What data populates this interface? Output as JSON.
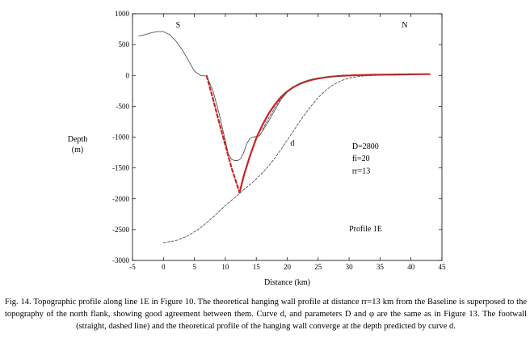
{
  "caption": "Fig. 14. Topographic profile along line 1E in Figure 10. The theoretical hanging wall profile at distance rr=13 km from the Baseline is superposed to the topography of the north flank, showing good agreement between them. Curve d, and parameters D and φ are the same as in Figure 13. The footwall (straight, dashed line) and the theoretical profile of the hanging wall converge at the depth predicted by curve d.",
  "chart_data": {
    "type": "line",
    "xlabel": "Distance (km)",
    "ylabel": [
      "Depth",
      "(m)"
    ],
    "xlim": [
      -5,
      45
    ],
    "ylim": [
      -3000,
      1000
    ],
    "xticks": [
      -5,
      0,
      5,
      10,
      15,
      20,
      25,
      30,
      35,
      40,
      45
    ],
    "yticks": [
      1000,
      500,
      0,
      -500,
      -1000,
      -1500,
      -2000,
      -2500,
      -3000
    ],
    "grid": false,
    "annotations": [
      {
        "text": "S",
        "x": 2,
        "y": 780
      },
      {
        "text": "N",
        "x": 38.5,
        "y": 780
      },
      {
        "text": "d",
        "x": 20.5,
        "y": -1140
      },
      {
        "text": "D=2800",
        "x": 30.5,
        "y": -1190
      },
      {
        "text": "fi=20",
        "x": 30.5,
        "y": -1390
      },
      {
        "text": "rr=13",
        "x": 30.5,
        "y": -1590
      },
      {
        "text": "Profile 1E",
        "x": 30,
        "y": -2530
      }
    ],
    "series": [
      {
        "style": "topography",
        "color": "#555555",
        "dash": "none",
        "x": [
          -4,
          -3,
          -2,
          -1,
          0,
          1,
          2,
          3,
          4,
          5,
          6,
          7,
          8,
          9,
          10,
          10.5,
          11,
          11.5,
          12,
          12.5,
          13,
          13.5,
          14,
          14.5,
          15,
          15.5,
          16,
          17,
          18,
          19,
          20,
          21,
          22,
          23,
          24,
          25,
          26,
          27,
          28,
          29,
          30,
          31,
          32,
          33,
          34,
          35,
          36,
          37,
          38,
          39,
          40,
          41,
          42,
          43
        ],
        "y": [
          640,
          660,
          690,
          710,
          710,
          660,
          560,
          420,
          250,
          70,
          0,
          -10,
          -250,
          -620,
          -1060,
          -1280,
          -1360,
          -1380,
          -1380,
          -1350,
          -1240,
          -1100,
          -1020,
          -1000,
          -990,
          -980,
          -900,
          -740,
          -560,
          -390,
          -270,
          -190,
          -130,
          -90,
          -65,
          -45,
          -30,
          -20,
          -15,
          -10,
          -5,
          0,
          0,
          0,
          5,
          5,
          10,
          10,
          10,
          15,
          15,
          15,
          20,
          20
        ]
      },
      {
        "style": "footwall",
        "color": "#cc2222",
        "dash": "4,3",
        "x": [
          7,
          8,
          9,
          10,
          11,
          12.3
        ],
        "y": [
          -10,
          -380,
          -760,
          -1130,
          -1500,
          -1900
        ]
      },
      {
        "style": "hanging-wall-theoretical",
        "color": "#cc2222",
        "dash": "none",
        "x": [
          12.3,
          13,
          14,
          15,
          16,
          17,
          18,
          19,
          20,
          21,
          22,
          23,
          24,
          25,
          26,
          27,
          28,
          29,
          30,
          31,
          32,
          33,
          34,
          35,
          36,
          37,
          38,
          39,
          40,
          41,
          42,
          43
        ],
        "y": [
          -1900,
          -1620,
          -1300,
          -1020,
          -800,
          -620,
          -470,
          -350,
          -260,
          -190,
          -140,
          -100,
          -72,
          -50,
          -33,
          -20,
          -12,
          -5,
          0,
          3,
          6,
          9,
          11,
          13,
          14,
          15,
          16,
          17,
          18,
          19,
          20,
          20
        ]
      },
      {
        "style": "curve-d",
        "color": "#555555",
        "dash": "3,2",
        "x": [
          0,
          2,
          4,
          6,
          8,
          10,
          12,
          13,
          14,
          15,
          16,
          17,
          18,
          19,
          20,
          21,
          22,
          23,
          24,
          25,
          26,
          27,
          28,
          29,
          30,
          31,
          32,
          33,
          34,
          35,
          36,
          37,
          38,
          39,
          40
        ],
        "y": [
          -2710,
          -2680,
          -2600,
          -2470,
          -2300,
          -2110,
          -1940,
          -1850,
          -1770,
          -1680,
          -1580,
          -1470,
          -1340,
          -1200,
          -1050,
          -900,
          -750,
          -610,
          -480,
          -360,
          -260,
          -180,
          -120,
          -75,
          -45,
          -25,
          -12,
          -5,
          0,
          2,
          4,
          5,
          6,
          7,
          8
        ]
      },
      {
        "style": "hanging-wall-thin-dashed",
        "color": "#555555",
        "dash": "3,2",
        "x": [
          16,
          17,
          18,
          19,
          20,
          21,
          22,
          23,
          24,
          25,
          26,
          27,
          28,
          29,
          30,
          31,
          32
        ],
        "y": [
          -880,
          -690,
          -520,
          -380,
          -270,
          -190,
          -130,
          -90,
          -60,
          -40,
          -28,
          -18,
          -12,
          -7,
          -4,
          -2,
          0
        ]
      }
    ]
  }
}
